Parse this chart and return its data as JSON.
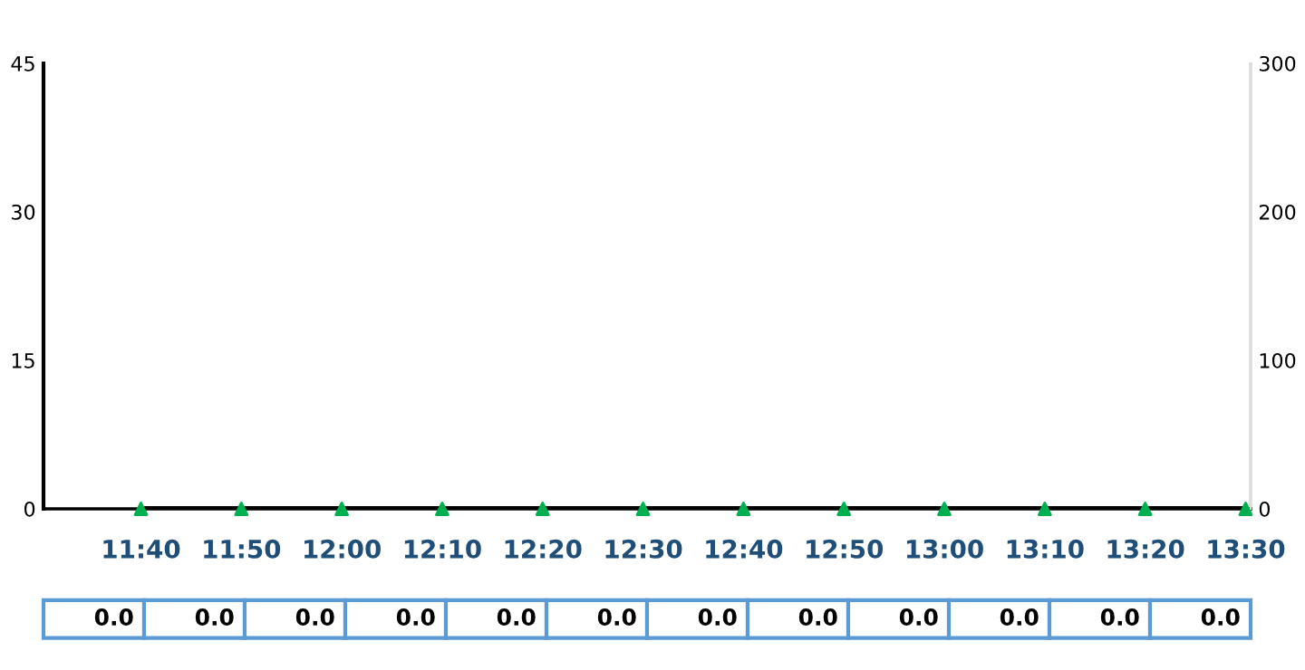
{
  "chart_data": {
    "type": "line",
    "categories": [
      "11:40",
      "11:50",
      "12:00",
      "12:10",
      "12:20",
      "12:30",
      "12:40",
      "12:50",
      "13:00",
      "13:10",
      "13:20",
      "13:30"
    ],
    "series": [
      {
        "color": "#000000",
        "marker": "none",
        "values": [
          0,
          0,
          0,
          0,
          0,
          0,
          0,
          0,
          0,
          0,
          0,
          0
        ],
        "value_labels": [
          "0.0",
          "0.0",
          "0.0",
          "0.0",
          "0.0",
          "0.0",
          "0.0",
          "0.0",
          "0.0",
          "0.0",
          "0.0",
          "0.0"
        ]
      },
      {
        "type": "scatter",
        "color": "#00b050",
        "marker": "triangle",
        "values": [
          0,
          0,
          0,
          0,
          0,
          0,
          0,
          0,
          0,
          0,
          0,
          0
        ]
      }
    ],
    "ylim": [
      0,
      45
    ],
    "yticks": [
      0,
      15,
      30,
      45
    ],
    "y2lim": [
      0,
      300
    ],
    "y2ticks": [
      0,
      100,
      200,
      300
    ],
    "grid": false,
    "legend": false
  }
}
